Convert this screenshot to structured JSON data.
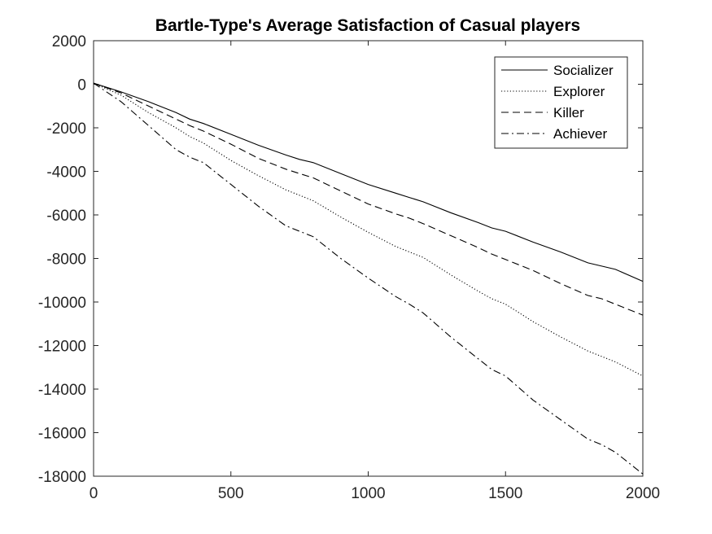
{
  "chart_data": {
    "type": "line",
    "title": "Bartle-Type's Average Satisfaction of Casual players",
    "xlabel": "",
    "ylabel": "",
    "xlim": [
      0,
      2000
    ],
    "ylim": [
      -18000,
      2000
    ],
    "xticks": [
      0,
      500,
      1000,
      1500,
      2000
    ],
    "xtick_labels": [
      "0",
      "500",
      "1000",
      "1500",
      "2000"
    ],
    "yticks": [
      2000,
      0,
      -2000,
      -4000,
      -6000,
      -8000,
      -10000,
      -12000,
      -14000,
      -16000,
      -18000
    ],
    "ytick_labels": [
      "2000",
      "0",
      "-2000",
      "-4000",
      "-6000",
      "-8000",
      "-10000",
      "-12000",
      "-14000",
      "-16000",
      "-18000"
    ],
    "grid": false,
    "legend_position": "top-right",
    "line_color": "#000000",
    "x": [
      0,
      100,
      200,
      300,
      350,
      400,
      500,
      600,
      700,
      750,
      800,
      900,
      1000,
      1100,
      1150,
      1200,
      1300,
      1400,
      1450,
      1500,
      1600,
      1700,
      1800,
      1850,
      1900,
      2000
    ],
    "series": [
      {
        "name": "Socializer",
        "dash": "solid",
        "values": [
          50,
          -350,
          -800,
          -1300,
          -1600,
          -1800,
          -2300,
          -2800,
          -3250,
          -3450,
          -3600,
          -4100,
          -4600,
          -5000,
          -5200,
          -5400,
          -5900,
          -6350,
          -6600,
          -6750,
          -7250,
          -7700,
          -8200,
          -8350,
          -8500,
          -9050
        ]
      },
      {
        "name": "Explorer",
        "dash": "dotted",
        "values": [
          50,
          -500,
          -1300,
          -2000,
          -2400,
          -2700,
          -3500,
          -4200,
          -4850,
          -5100,
          -5350,
          -6100,
          -6800,
          -7450,
          -7700,
          -7950,
          -8750,
          -9500,
          -9850,
          -10100,
          -10900,
          -11600,
          -12250,
          -12500,
          -12750,
          -13400
        ]
      },
      {
        "name": "Killer",
        "dash": "dashed",
        "values": [
          50,
          -400,
          -1000,
          -1600,
          -1900,
          -2150,
          -2750,
          -3400,
          -3900,
          -4100,
          -4300,
          -4900,
          -5500,
          -5950,
          -6150,
          -6400,
          -6950,
          -7500,
          -7800,
          -8050,
          -8550,
          -9150,
          -9700,
          -9850,
          -10100,
          -10600
        ]
      },
      {
        "name": "Achiever",
        "dash": "dashdot",
        "values": [
          50,
          -800,
          -1900,
          -3000,
          -3350,
          -3600,
          -4600,
          -5600,
          -6500,
          -6750,
          -7000,
          -8000,
          -8900,
          -9750,
          -10100,
          -10500,
          -11600,
          -12600,
          -13100,
          -13400,
          -14500,
          -15400,
          -16300,
          -16550,
          -16900,
          -17900
        ]
      }
    ]
  }
}
